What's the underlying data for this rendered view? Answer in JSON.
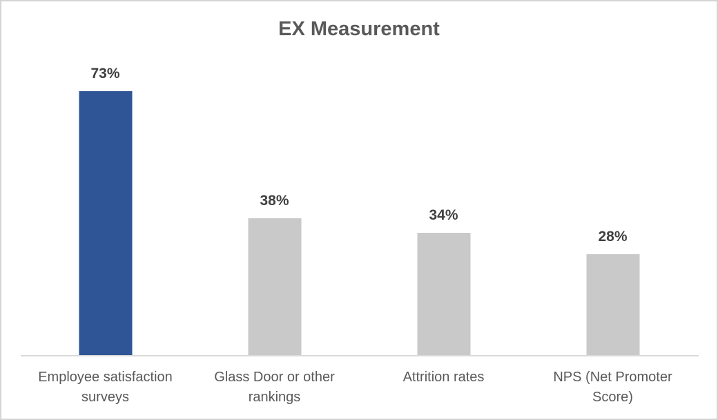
{
  "chart_data": {
    "type": "bar",
    "title": "EX Measurement",
    "categories": [
      "Employee satisfaction surveys",
      "Glass Door or other rankings",
      "Attrition rates",
      "NPS (Net Promoter Score)"
    ],
    "values": [
      73,
      38,
      34,
      28
    ],
    "value_labels": [
      "73%",
      "38%",
      "34%",
      "28%"
    ],
    "bar_colors": [
      "#2f5596",
      "#c9c9c9",
      "#c9c9c9",
      "#c9c9c9"
    ],
    "xlabel": "",
    "ylabel": "",
    "ylim": [
      0,
      85
    ],
    "grid": false,
    "legend": false,
    "data_labels_position": "above"
  },
  "colors": {
    "accent_blue": "#2f5596",
    "bar_gray": "#c9c9c9",
    "title_text": "#595959",
    "category_text": "#595959",
    "value_text": "#404040",
    "axis_line": "#d9d9d9",
    "page_border": "#d4d4d4"
  }
}
